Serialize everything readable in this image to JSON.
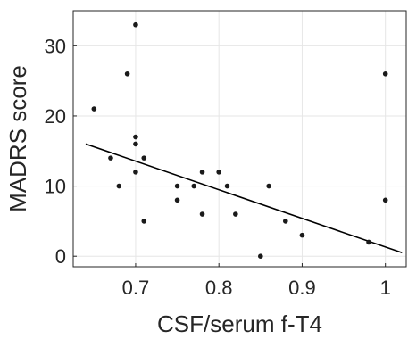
{
  "chart_data": {
    "type": "scatter",
    "xlabel": "CSF/serum f-T4",
    "ylabel": "MADRS score",
    "xlim": [
      0.625,
      1.025
    ],
    "ylim": [
      -1.5,
      35
    ],
    "x_ticks": [
      0.7,
      0.8,
      0.9,
      1.0
    ],
    "x_tick_labels": [
      "0.7",
      "0.8",
      "0.9",
      "1"
    ],
    "y_ticks": [
      0,
      10,
      20,
      30
    ],
    "y_tick_labels": [
      "0",
      "10",
      "20",
      "30"
    ],
    "grid": true,
    "legend": "none",
    "point_color": "#1a1a1a",
    "line_color": "#000000",
    "points": [
      {
        "x": 0.65,
        "y": 21
      },
      {
        "x": 0.67,
        "y": 14
      },
      {
        "x": 0.68,
        "y": 10
      },
      {
        "x": 0.69,
        "y": 26
      },
      {
        "x": 0.7,
        "y": 33
      },
      {
        "x": 0.7,
        "y": 17
      },
      {
        "x": 0.7,
        "y": 16
      },
      {
        "x": 0.7,
        "y": 12
      },
      {
        "x": 0.71,
        "y": 14
      },
      {
        "x": 0.71,
        "y": 5
      },
      {
        "x": 0.75,
        "y": 10
      },
      {
        "x": 0.75,
        "y": 8
      },
      {
        "x": 0.77,
        "y": 10
      },
      {
        "x": 0.78,
        "y": 12
      },
      {
        "x": 0.78,
        "y": 6
      },
      {
        "x": 0.8,
        "y": 12
      },
      {
        "x": 0.81,
        "y": 10
      },
      {
        "x": 0.82,
        "y": 6
      },
      {
        "x": 0.85,
        "y": 0
      },
      {
        "x": 0.86,
        "y": 10
      },
      {
        "x": 0.88,
        "y": 5
      },
      {
        "x": 0.9,
        "y": 3
      },
      {
        "x": 0.98,
        "y": 2
      },
      {
        "x": 1.0,
        "y": 26
      },
      {
        "x": 1.0,
        "y": 8
      }
    ],
    "regression_line": {
      "x": [
        0.64,
        1.02
      ],
      "y": [
        16,
        0.5
      ]
    }
  }
}
